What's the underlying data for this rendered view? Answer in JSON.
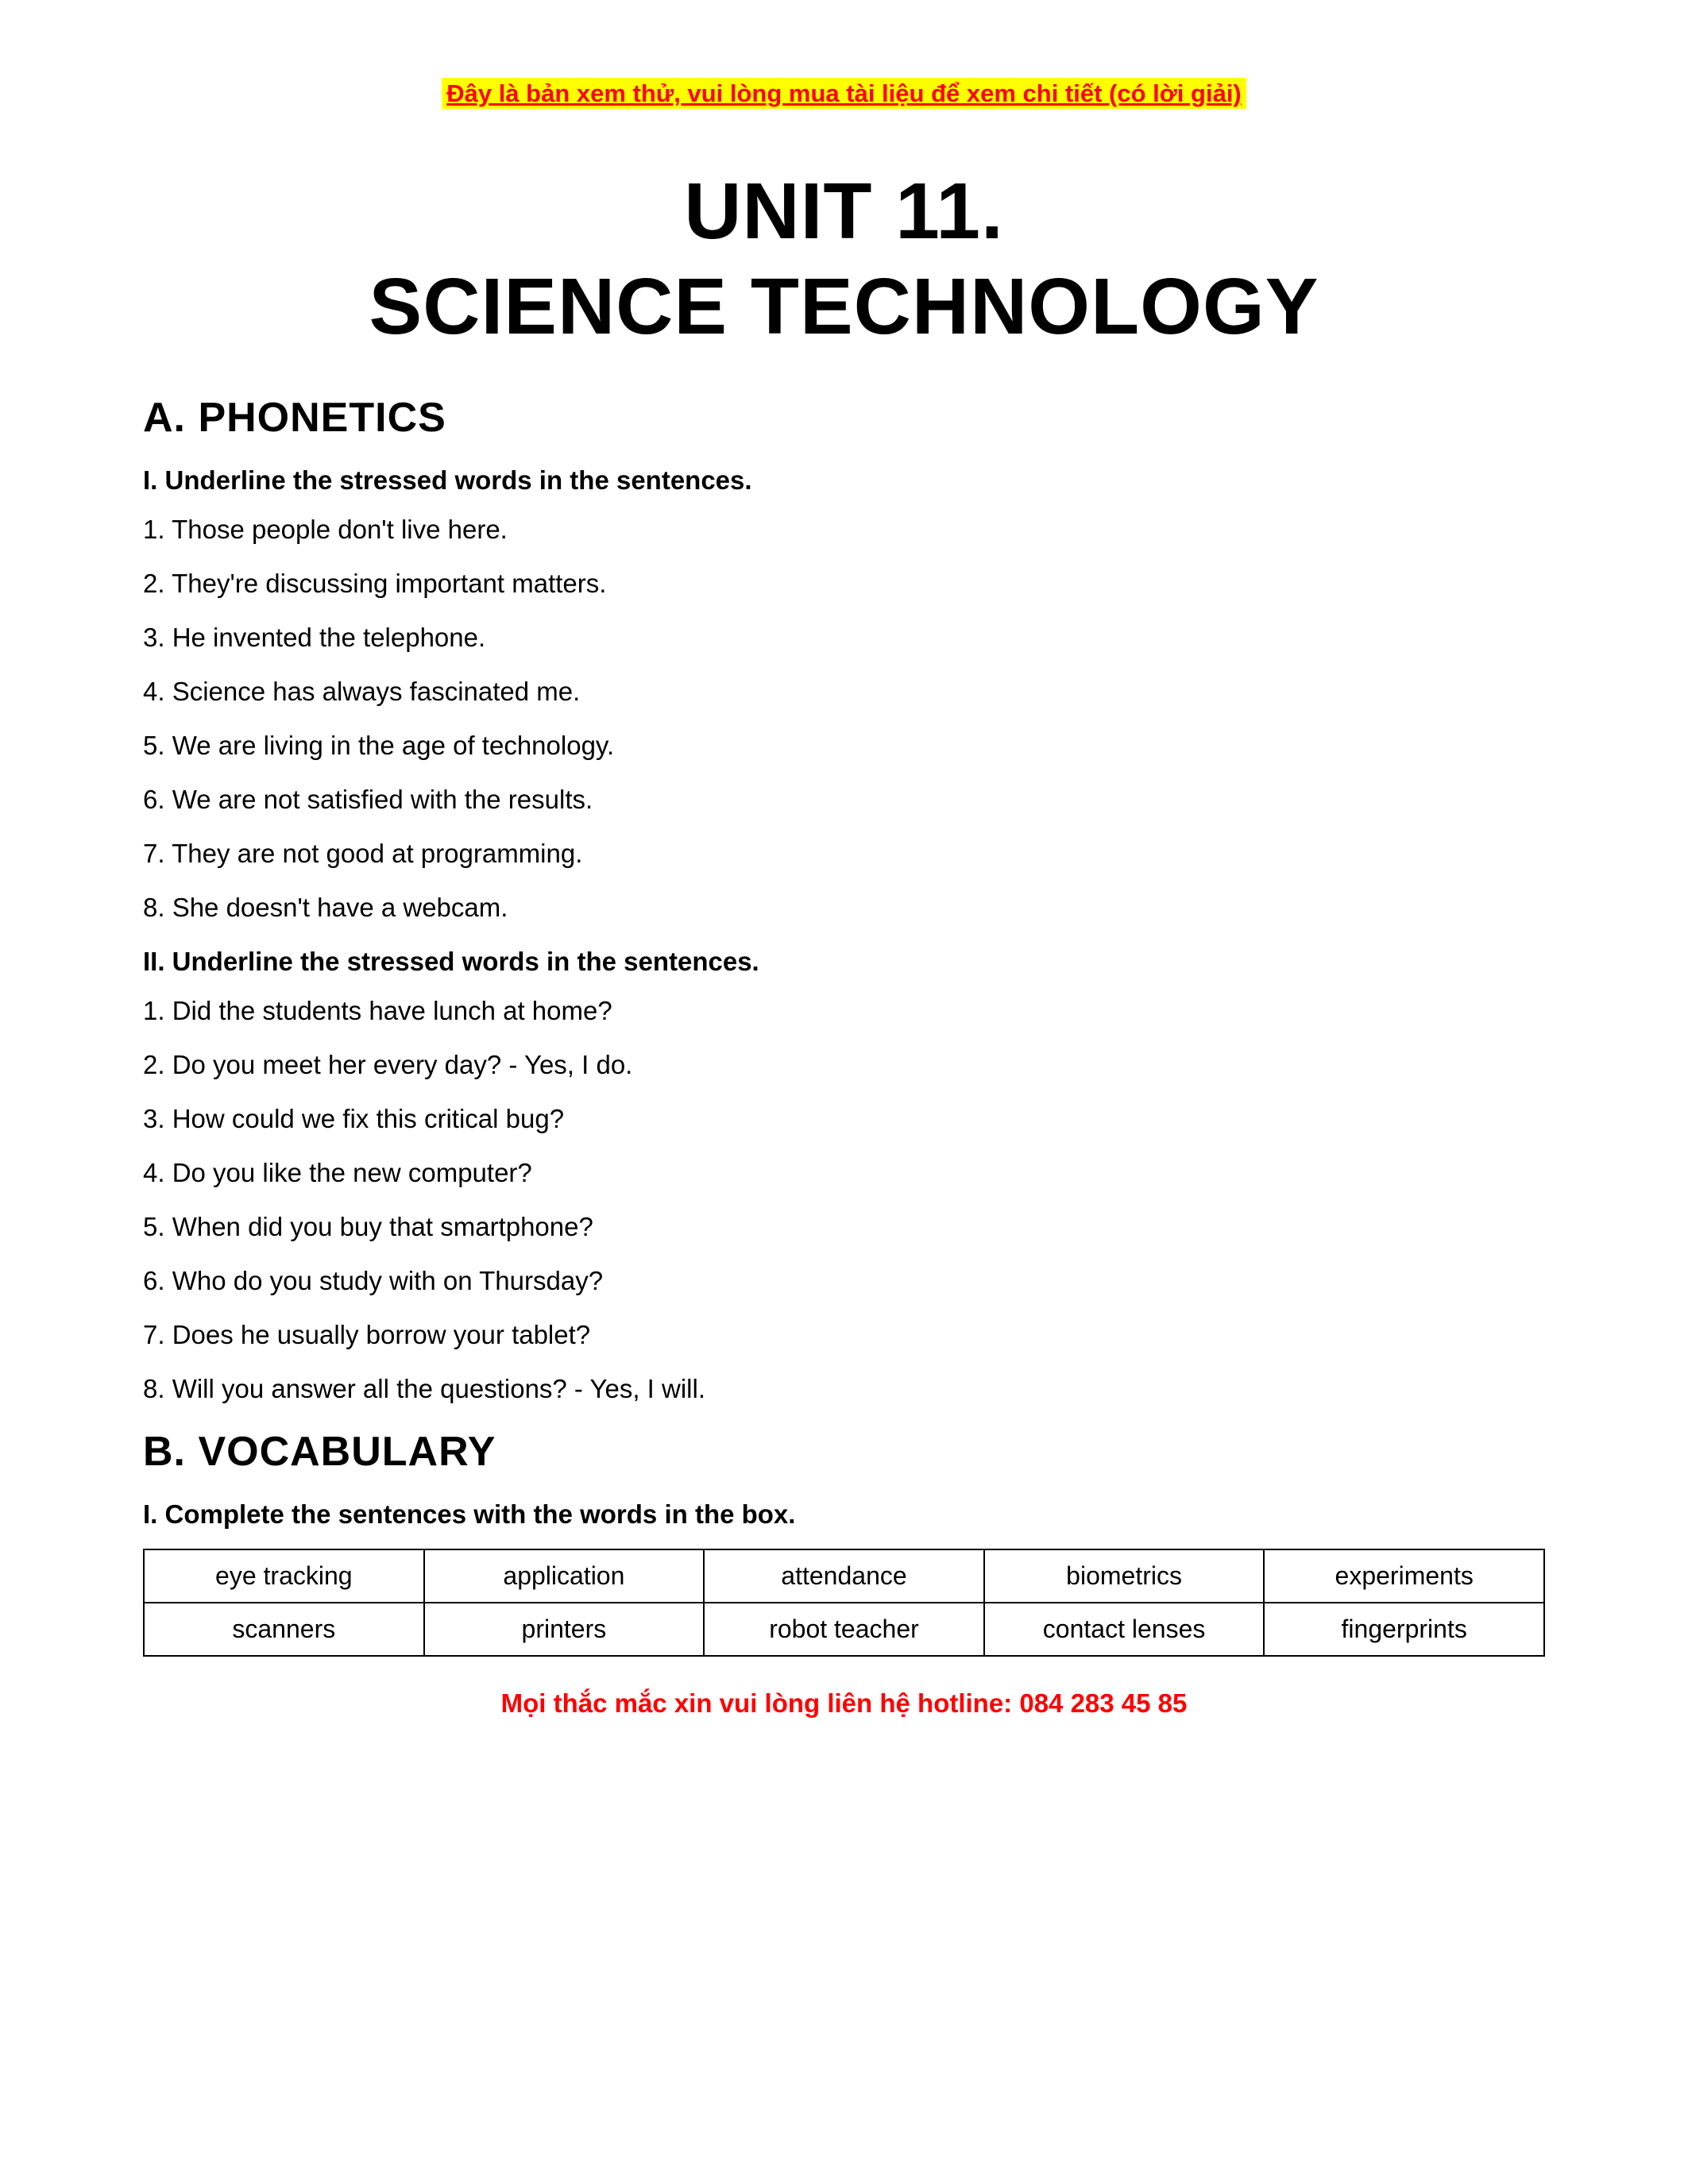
{
  "banner_top": "Đây là bản xem thử, vui lòng mua tài liệu để xem chi tiết (có lời giải)",
  "title_line1": "UNIT 11.",
  "title_line2": "SCIENCE TECHNOLOGY",
  "section_a": "A. PHONETICS",
  "phonetics": {
    "instr1": "I. Underline the stressed words in the sentences.",
    "set1": [
      "1. Those people don't live here.",
      "2. They're discussing important matters.",
      "3. He invented the telephone.",
      "4. Science has always fascinated me.",
      "5. We are living in the age of technology.",
      "6. We are not satisfied with the results.",
      "7. They are not good at programming.",
      "8. She doesn't have a webcam."
    ],
    "instr2": "II. Underline the stressed words in the sentences.",
    "set2": [
      "1. Did the students have lunch at home?",
      "2. Do you meet her every day? - Yes, I do.",
      "3. How could we fix this critical bug?",
      "4. Do you like the new computer?",
      "5. When did you buy that smartphone?",
      "6. Who do you study with on Thursday?",
      "7. Does he usually borrow your tablet?",
      "8. Will you answer all the questions? - Yes, I will."
    ]
  },
  "section_b": "B. VOCABULARY",
  "vocab": {
    "instr1": "I. Complete the sentences with the words in the box.",
    "table": {
      "columns": 5,
      "rows": [
        [
          "eye tracking",
          "application",
          "attendance",
          "biometrics",
          "experiments"
        ],
        [
          "scanners",
          "printers",
          "robot teacher",
          "contact lenses",
          "fingerprints"
        ]
      ],
      "border_color": "#000000",
      "cell_fontsize": 32,
      "cell_align": "center"
    }
  },
  "banner_bottom": "Mọi thắc mắc xin vui lòng liên hệ hotline: 084 283 45 85",
  "colors": {
    "highlight_bg": "#ffff00",
    "highlight_fg": "#ff0000",
    "text": "#000000",
    "page_bg": "#ffffff"
  },
  "typography": {
    "title_fontsize": 100,
    "section_fontsize": 52,
    "instruction_fontsize": 33,
    "body_fontsize": 33,
    "banner_fontsize": 31,
    "footer_fontsize": 33
  }
}
